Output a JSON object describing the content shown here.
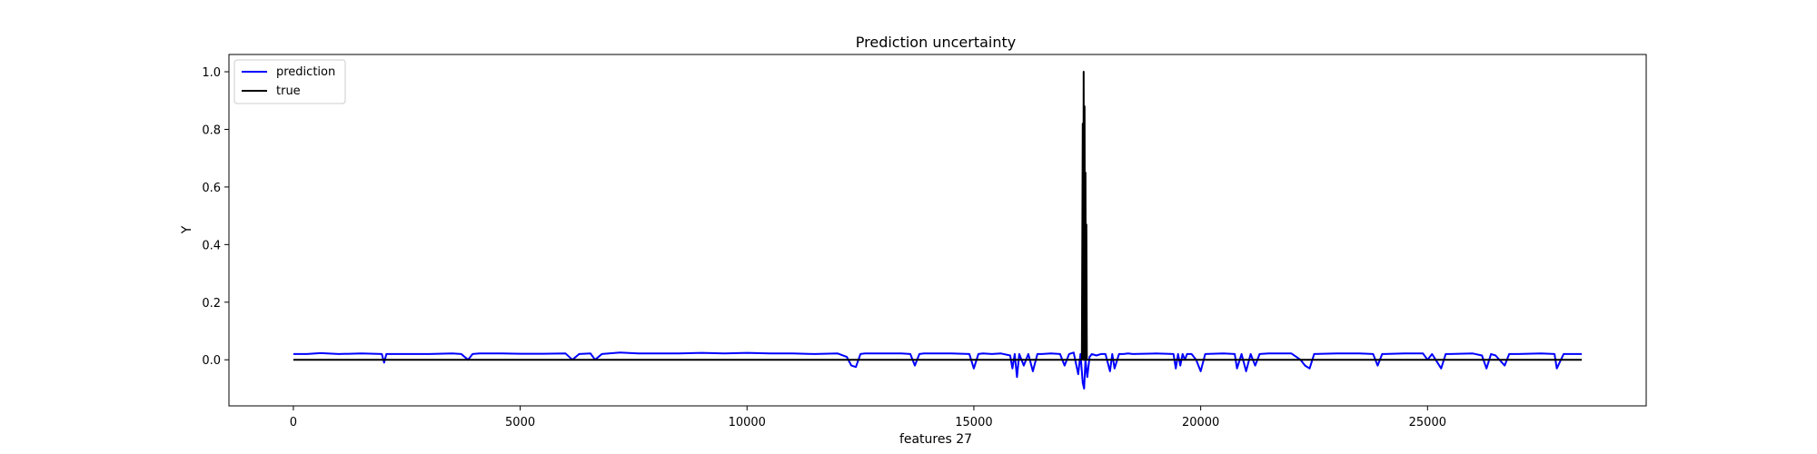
{
  "chart_data": {
    "type": "line",
    "title": "Prediction uncertainty",
    "xlabel": "features 27",
    "ylabel": "Y",
    "xlim": [
      -1420,
      29820
    ],
    "ylim": [
      -0.16,
      1.06
    ],
    "xticks": [
      0,
      5000,
      10000,
      15000,
      20000,
      25000
    ],
    "xtick_labels": [
      "0",
      "5000",
      "10000",
      "15000",
      "20000",
      "25000"
    ],
    "yticks": [
      0.0,
      0.2,
      0.4,
      0.6,
      0.8,
      1.0
    ],
    "ytick_labels": [
      "0.0",
      "0.2",
      "0.4",
      "0.6",
      "0.8",
      "1.0"
    ],
    "grid": false,
    "legend_position": "top-left",
    "series": [
      {
        "name": "prediction",
        "color": "#0000ff",
        "x": [
          0,
          300,
          600,
          1000,
          1500,
          1950,
          2000,
          2050,
          2500,
          3000,
          3500,
          3700,
          3850,
          3950,
          4100,
          4600,
          5000,
          5500,
          6000,
          6150,
          6300,
          6550,
          6650,
          6800,
          7200,
          7600,
          8000,
          8500,
          9000,
          9500,
          10000,
          10500,
          11000,
          11500,
          12000,
          12200,
          12300,
          12400,
          12500,
          12600,
          13000,
          13400,
          13600,
          13700,
          13800,
          13900,
          14000,
          14500,
          14900,
          15000,
          15100,
          15200,
          15400,
          15600,
          15800,
          15850,
          15900,
          15950,
          16000,
          16100,
          16200,
          16300,
          16400,
          16500,
          16700,
          16900,
          17000,
          17100,
          17200,
          17300,
          17350,
          17400,
          17430,
          17460,
          17500,
          17550,
          17600,
          17700,
          17800,
          17900,
          18000,
          18050,
          18100,
          18200,
          18300,
          18400,
          18500,
          19000,
          19400,
          19450,
          19500,
          19550,
          19600,
          19650,
          19700,
          19800,
          19900,
          20000,
          20100,
          20500,
          20750,
          20800,
          20900,
          21000,
          21100,
          21200,
          21300,
          21500,
          22000,
          22200,
          22300,
          22400,
          22500,
          23000,
          23500,
          23800,
          23900,
          24000,
          24500,
          24900,
          25000,
          25100,
          25300,
          25400,
          25500,
          26000,
          26200,
          26300,
          26400,
          26500,
          26700,
          26800,
          27000,
          27500,
          27800,
          27850,
          28000,
          28400
        ],
        "y": [
          0.02,
          0.02,
          0.023,
          0.02,
          0.022,
          0.02,
          -0.01,
          0.02,
          0.02,
          0.02,
          0.022,
          0.02,
          0.0,
          0.02,
          0.022,
          0.022,
          0.021,
          0.021,
          0.022,
          0.0,
          0.02,
          0.022,
          0.0,
          0.02,
          0.025,
          0.022,
          0.022,
          0.022,
          0.024,
          0.022,
          0.024,
          0.022,
          0.022,
          0.02,
          0.022,
          0.01,
          -0.02,
          -0.025,
          0.02,
          0.022,
          0.022,
          0.022,
          0.02,
          -0.02,
          0.02,
          0.022,
          0.022,
          0.022,
          0.02,
          -0.03,
          0.02,
          0.022,
          0.02,
          0.022,
          0.015,
          -0.03,
          0.02,
          -0.06,
          0.02,
          -0.02,
          0.02,
          -0.04,
          0.02,
          0.02,
          0.022,
          0.02,
          -0.02,
          0.02,
          0.025,
          -0.05,
          0.02,
          -0.08,
          -0.1,
          0.0,
          -0.06,
          0.01,
          0.02,
          0.015,
          0.02,
          0.02,
          -0.04,
          0.02,
          -0.03,
          0.02,
          0.02,
          0.022,
          0.02,
          0.022,
          0.02,
          -0.03,
          0.02,
          -0.02,
          0.02,
          0.0,
          0.02,
          0.02,
          0.0,
          -0.04,
          0.02,
          0.022,
          0.02,
          -0.03,
          0.02,
          -0.04,
          0.02,
          -0.02,
          0.02,
          0.022,
          0.022,
          0.0,
          -0.02,
          -0.03,
          0.02,
          0.022,
          0.022,
          0.02,
          -0.02,
          0.02,
          0.022,
          0.022,
          0.0,
          0.02,
          -0.03,
          0.02,
          0.02,
          0.022,
          0.015,
          -0.03,
          0.02,
          0.015,
          -0.02,
          0.02,
          0.02,
          0.022,
          0.02,
          -0.03,
          0.02,
          0.02
        ]
      },
      {
        "name": "true",
        "color": "#000000",
        "x": [
          0,
          17380,
          17400,
          17410,
          17420,
          17430,
          17440,
          17450,
          17460,
          17470,
          17480,
          17490,
          17500,
          28400
        ],
        "y": [
          0.0,
          0.0,
          0.82,
          0.0,
          1.0,
          0.0,
          0.88,
          0.0,
          0.65,
          0.0,
          0.47,
          0.0,
          0.0,
          0.0
        ]
      }
    ]
  }
}
